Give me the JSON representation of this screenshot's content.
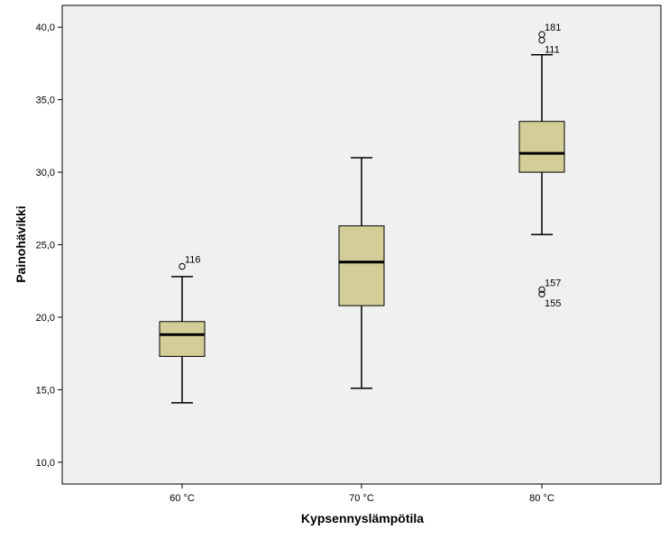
{
  "chart_data": {
    "type": "box",
    "xlabel": "Kypsennyslämpötila",
    "ylabel": "Painohävikki",
    "ylim": [
      8.5,
      41.5
    ],
    "yticks": [
      10,
      15,
      20,
      25,
      30,
      35,
      40
    ],
    "ytick_labels": [
      "10,0",
      "15,0",
      "20,0",
      "25,0",
      "30,0",
      "35,0",
      "40,0"
    ],
    "grid": false,
    "colors": {
      "plot_background": "#f0f0f0",
      "box_fill": "#d3ce97",
      "line": "#000000"
    },
    "categories": [
      "60 °C",
      "70 °C",
      "80 °C"
    ],
    "boxes": [
      {
        "category": "60 °C",
        "whisker_low": 14.1,
        "q1": 17.3,
        "median": 18.8,
        "q3": 19.7,
        "whisker_high": 22.8,
        "outliers": [
          {
            "value": 23.5,
            "label": "116"
          }
        ]
      },
      {
        "category": "70 °C",
        "whisker_low": 15.1,
        "q1": 20.8,
        "median": 23.8,
        "q3": 26.3,
        "whisker_high": 31.0,
        "outliers": []
      },
      {
        "category": "80 °C",
        "whisker_low": 25.7,
        "q1": 30.0,
        "median": 31.3,
        "q3": 33.5,
        "whisker_high": 38.1,
        "outliers": [
          {
            "value": 39.5,
            "label": "181"
          },
          {
            "value": 39.1,
            "label": "111"
          },
          {
            "value": 21.9,
            "label": "157"
          },
          {
            "value": 21.6,
            "label": "155"
          }
        ]
      }
    ]
  }
}
